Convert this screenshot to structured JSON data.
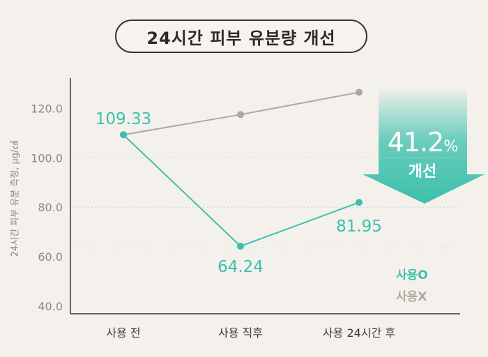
{
  "title": "24시간 피부 유분량 개선",
  "chart_data": {
    "type": "line",
    "categories": [
      "사용 전",
      "사용 직후",
      "사용 24시간 후"
    ],
    "ylabel": "24시간 피부 유분 측정, μg/㎠",
    "ylim": [
      40,
      130
    ],
    "yticks": [
      "40.0",
      "60.0",
      "80.0",
      "100.0",
      "120.0"
    ],
    "ytick_values": [
      40,
      60,
      80,
      100,
      120
    ],
    "grid": "dotted horizontal at 80, 100 and between 60 and 80",
    "series": [
      {
        "name": "사용O",
        "color": "#3cc0ac",
        "values": [
          109.33,
          64.24,
          81.95
        ],
        "labels": [
          "109.33",
          "64.24",
          "81.95"
        ]
      },
      {
        "name": "사용X",
        "color": "#b0a89c",
        "values": [
          109.33,
          117.5,
          126.5
        ],
        "labels": [
          "",
          "",
          ""
        ]
      }
    ]
  },
  "improvement": {
    "value": "41.2",
    "unit": "%",
    "label": "개선",
    "color": "#3cc0ac"
  },
  "legend": {
    "used": "사용O",
    "not_used": "사용X"
  }
}
